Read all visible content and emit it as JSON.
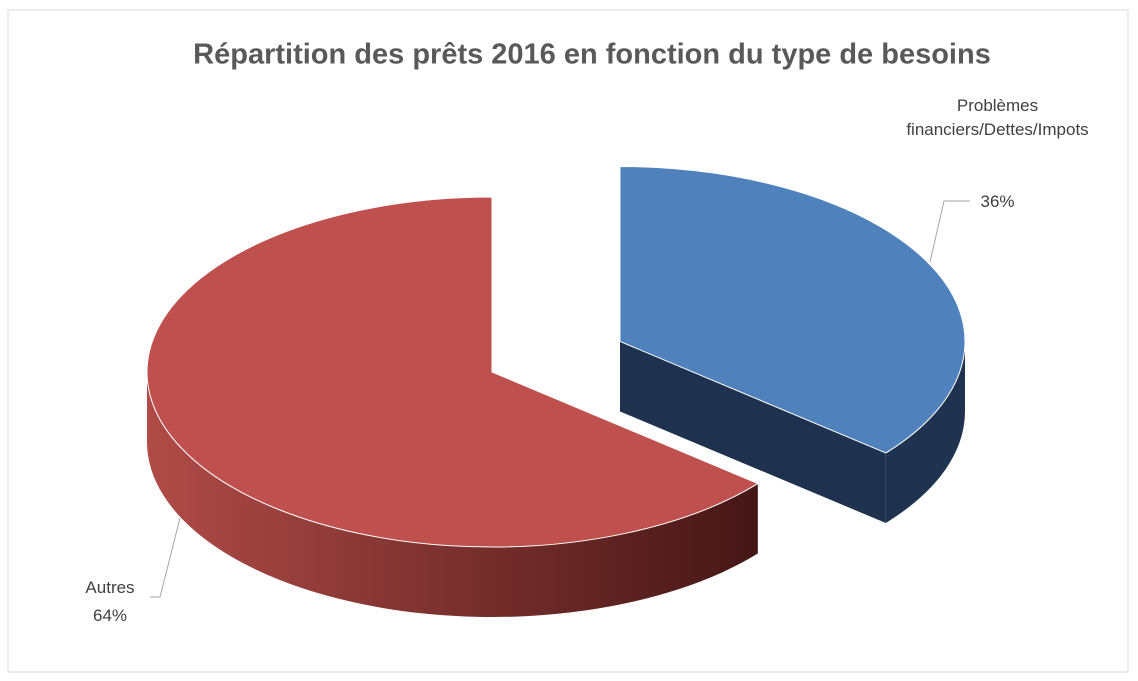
{
  "chart_data": {
    "type": "pie",
    "title": "Répartition des prêts 2016 en fonction du type de besoins",
    "categories": [
      "Problèmes financiers/Dettes/Impots",
      "Autres"
    ],
    "values": [
      36,
      64
    ],
    "value_labels": [
      "36%",
      "64%"
    ],
    "colors": [
      "#4f81bd",
      "#c0504d"
    ]
  }
}
